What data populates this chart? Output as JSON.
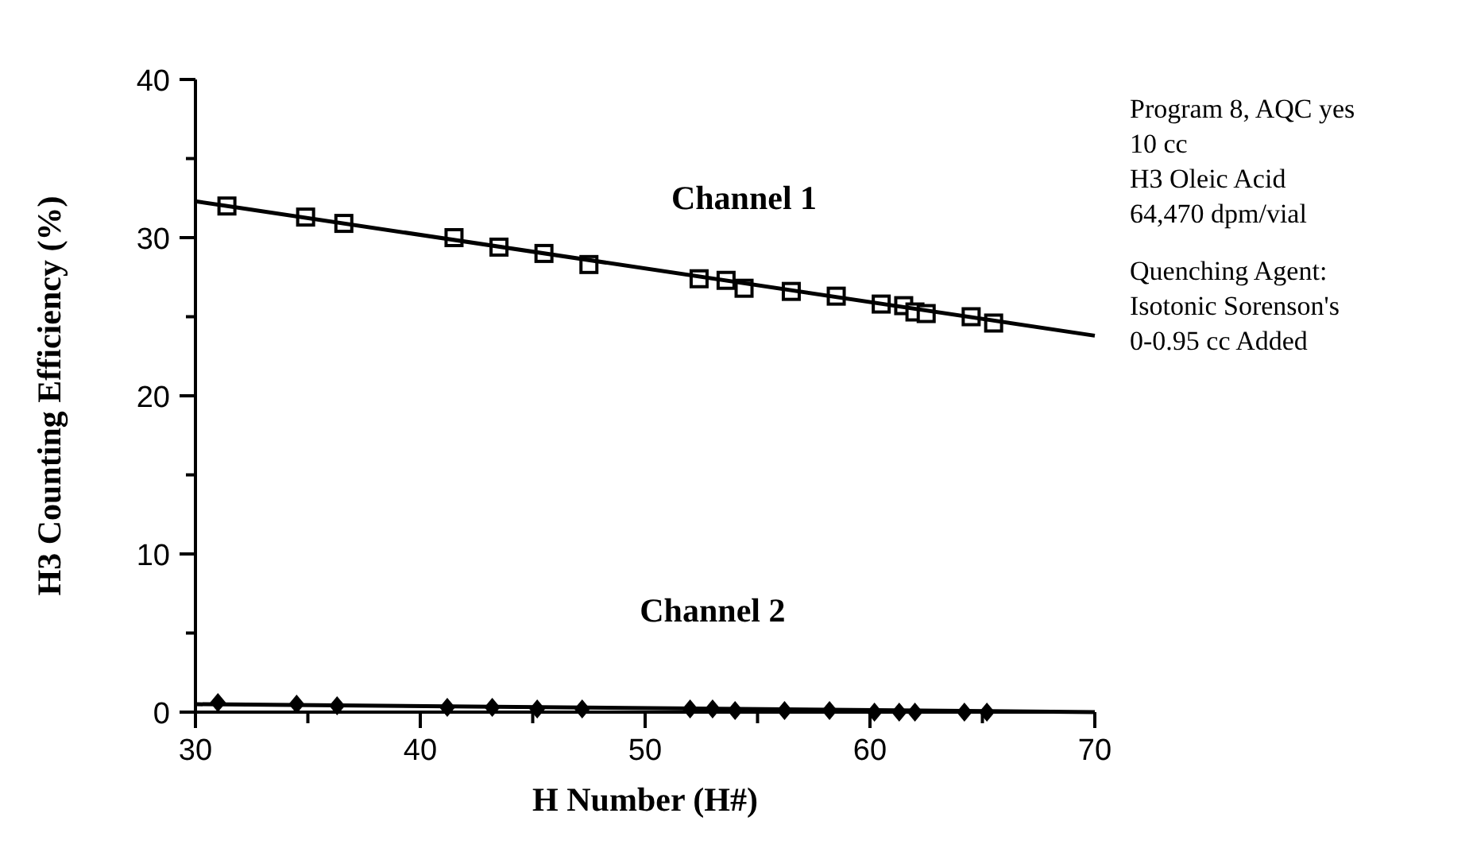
{
  "chart_data": {
    "type": "scatter",
    "xlabel": "H Number (H#)",
    "ylabel": "H3 Counting Efficiency (%)",
    "xlim": [
      30,
      70
    ],
    "ylim": [
      0,
      40
    ],
    "xticks": [
      30,
      {
        "value": 35,
        "label": null
      },
      40,
      {
        "value": 45,
        "label": null
      },
      50,
      {
        "value": 55,
        "label": null
      },
      60,
      {
        "value": 65,
        "label": null
      },
      70
    ],
    "yticks": [
      0,
      {
        "value": 5,
        "label": null
      },
      10,
      {
        "value": 15,
        "label": null
      },
      20,
      {
        "value": 25,
        "label": null
      },
      30,
      {
        "value": 35,
        "label": null
      },
      40
    ],
    "grid": false,
    "series": [
      {
        "name": "Channel 1",
        "color": "#000000",
        "marker": "square",
        "x": [
          31.4,
          34.9,
          36.6,
          41.5,
          43.5,
          45.5,
          47.5,
          52.4,
          53.6,
          54.4,
          56.5,
          58.5,
          60.5,
          61.5,
          62,
          62.5,
          64.5,
          65.5
        ],
        "values": [
          32.0,
          31.3,
          30.9,
          30.0,
          29.4,
          29.0,
          28.3,
          27.4,
          27.3,
          26.8,
          26.6,
          26.3,
          25.8,
          25.7,
          25.3,
          25.2,
          25.0,
          24.6
        ]
      },
      {
        "name": "Channel 2",
        "color": "#000000",
        "marker": "diamond",
        "x": [
          31,
          34.5,
          36.3,
          41.2,
          43.2,
          45.2,
          47.2,
          52,
          53,
          54,
          56.2,
          58.2,
          60.2,
          61.3,
          62,
          64.2,
          65.2
        ],
        "values": [
          0.6,
          0.5,
          0.4,
          0.3,
          0.3,
          0.2,
          0.2,
          0.2,
          0.2,
          0.1,
          0.1,
          0.1,
          0.0,
          0.0,
          0.0,
          0.0,
          0.0
        ]
      },
      {
        "type": "line",
        "color": "#000000",
        "marker": "none",
        "line_style": "solid",
        "x": [
          30,
          70
        ],
        "values": [
          32.3,
          23.8
        ]
      },
      {
        "type": "line",
        "color": "#000000",
        "marker": "none",
        "line_style": "solid",
        "x": [
          30,
          70
        ],
        "values": [
          0.5,
          0.0
        ]
      }
    ],
    "annotations": [
      "Program 8, AQC yes",
      "10 cc",
      "H3 Oleic Acid",
      "64,470 dpm/vial",
      "Quenching Agent:",
      "Isotonic Sorenson's",
      "0-0.95 cc Added"
    ]
  }
}
